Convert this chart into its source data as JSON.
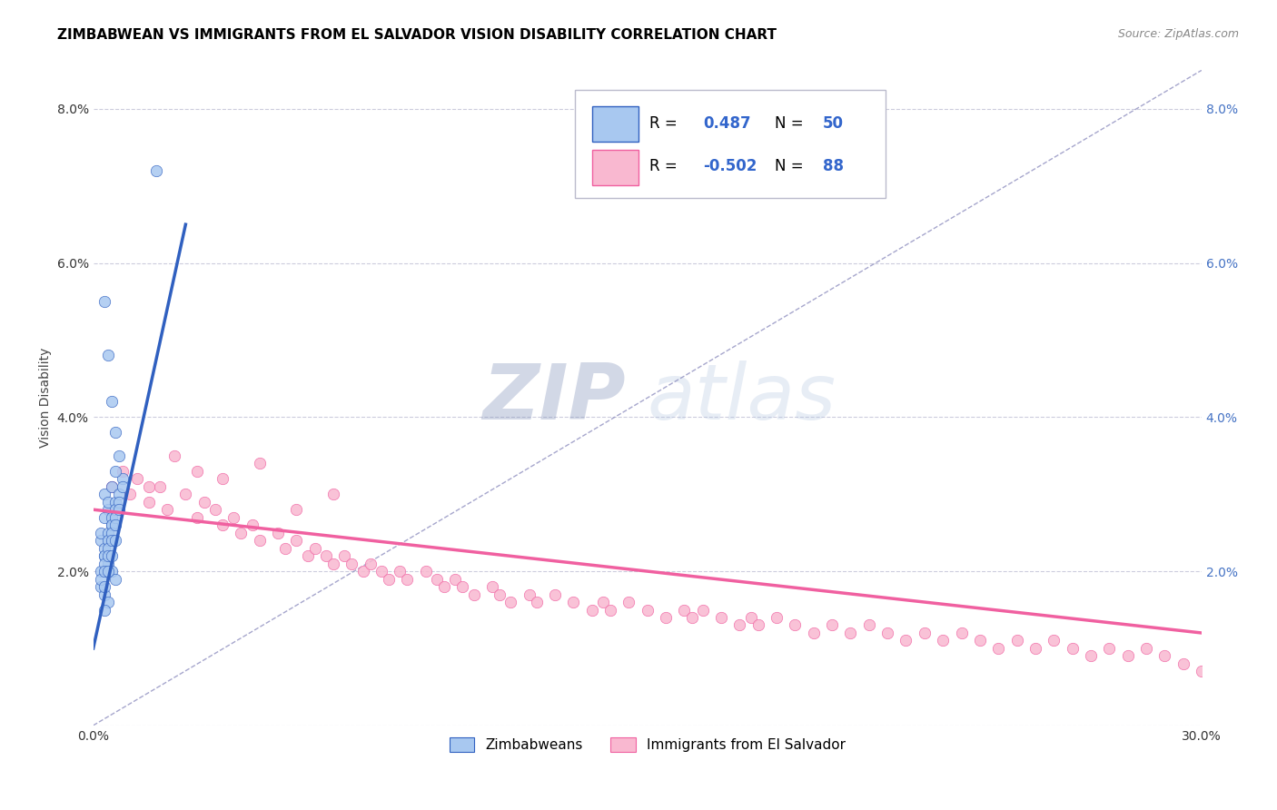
{
  "title": "ZIMBABWEAN VS IMMIGRANTS FROM EL SALVADOR VISION DISABILITY CORRELATION CHART",
  "source": "Source: ZipAtlas.com",
  "ylabel": "Vision Disability",
  "xlim": [
    0.0,
    0.3
  ],
  "ylim": [
    0.0,
    0.085
  ],
  "yticks": [
    0.0,
    0.02,
    0.04,
    0.06,
    0.08
  ],
  "ytick_labels": [
    "",
    "2.0%",
    "4.0%",
    "6.0%",
    "8.0%"
  ],
  "xticks": [
    0.0,
    0.05,
    0.1,
    0.15,
    0.2,
    0.25,
    0.3
  ],
  "xtick_labels": [
    "0.0%",
    "",
    "",
    "",
    "",
    "",
    "30.0%"
  ],
  "blue_color": "#A8C8F0",
  "pink_color": "#F9B8D0",
  "blue_line_color": "#3060C0",
  "pink_line_color": "#F060A0",
  "diag_line_color": "#9090C0",
  "background_color": "#FFFFFF",
  "legend_label_blue": "Zimbabweans",
  "legend_label_pink": "Immigrants from El Salvador",
  "watermark_zip": "ZIP",
  "watermark_atlas": "atlas",
  "title_fontsize": 11,
  "axis_label_fontsize": 10,
  "tick_fontsize": 10,
  "blue_scatter_x": [
    0.003,
    0.004,
    0.005,
    0.006,
    0.007,
    0.008,
    0.003,
    0.004,
    0.005,
    0.002,
    0.003,
    0.004,
    0.005,
    0.006,
    0.002,
    0.003,
    0.004,
    0.003,
    0.002,
    0.003,
    0.004,
    0.005,
    0.006,
    0.003,
    0.004,
    0.005,
    0.006,
    0.002,
    0.003,
    0.004,
    0.005,
    0.006,
    0.007,
    0.002,
    0.003,
    0.004,
    0.005,
    0.006,
    0.007,
    0.008,
    0.003,
    0.004,
    0.005,
    0.006,
    0.007,
    0.003,
    0.004,
    0.005,
    0.006,
    0.017
  ],
  "blue_scatter_y": [
    0.055,
    0.048,
    0.042,
    0.038,
    0.035,
    0.032,
    0.03,
    0.028,
    0.026,
    0.024,
    0.022,
    0.021,
    0.02,
    0.019,
    0.018,
    0.017,
    0.016,
    0.015,
    0.025,
    0.027,
    0.029,
    0.031,
    0.033,
    0.023,
    0.025,
    0.027,
    0.029,
    0.02,
    0.022,
    0.024,
    0.026,
    0.028,
    0.03,
    0.019,
    0.021,
    0.023,
    0.025,
    0.027,
    0.029,
    0.031,
    0.02,
    0.022,
    0.024,
    0.026,
    0.028,
    0.018,
    0.02,
    0.022,
    0.024,
    0.072
  ],
  "pink_scatter_x": [
    0.01,
    0.012,
    0.015,
    0.018,
    0.02,
    0.025,
    0.028,
    0.03,
    0.033,
    0.035,
    0.038,
    0.04,
    0.043,
    0.045,
    0.05,
    0.052,
    0.055,
    0.058,
    0.06,
    0.063,
    0.065,
    0.068,
    0.07,
    0.073,
    0.075,
    0.078,
    0.08,
    0.083,
    0.085,
    0.09,
    0.093,
    0.095,
    0.098,
    0.1,
    0.103,
    0.108,
    0.11,
    0.113,
    0.118,
    0.12,
    0.125,
    0.13,
    0.135,
    0.138,
    0.14,
    0.145,
    0.15,
    0.155,
    0.16,
    0.162,
    0.165,
    0.17,
    0.175,
    0.178,
    0.18,
    0.185,
    0.19,
    0.195,
    0.2,
    0.205,
    0.21,
    0.215,
    0.22,
    0.225,
    0.23,
    0.235,
    0.24,
    0.245,
    0.25,
    0.255,
    0.26,
    0.265,
    0.27,
    0.275,
    0.28,
    0.285,
    0.29,
    0.295,
    0.3,
    0.005,
    0.008,
    0.015,
    0.022,
    0.028,
    0.035,
    0.045,
    0.055,
    0.065
  ],
  "pink_scatter_y": [
    0.03,
    0.032,
    0.029,
    0.031,
    0.028,
    0.03,
    0.027,
    0.029,
    0.028,
    0.026,
    0.027,
    0.025,
    0.026,
    0.024,
    0.025,
    0.023,
    0.024,
    0.022,
    0.023,
    0.022,
    0.021,
    0.022,
    0.021,
    0.02,
    0.021,
    0.02,
    0.019,
    0.02,
    0.019,
    0.02,
    0.019,
    0.018,
    0.019,
    0.018,
    0.017,
    0.018,
    0.017,
    0.016,
    0.017,
    0.016,
    0.017,
    0.016,
    0.015,
    0.016,
    0.015,
    0.016,
    0.015,
    0.014,
    0.015,
    0.014,
    0.015,
    0.014,
    0.013,
    0.014,
    0.013,
    0.014,
    0.013,
    0.012,
    0.013,
    0.012,
    0.013,
    0.012,
    0.011,
    0.012,
    0.011,
    0.012,
    0.011,
    0.01,
    0.011,
    0.01,
    0.011,
    0.01,
    0.009,
    0.01,
    0.009,
    0.01,
    0.009,
    0.008,
    0.007,
    0.031,
    0.033,
    0.031,
    0.035,
    0.033,
    0.032,
    0.034,
    0.028,
    0.03
  ]
}
